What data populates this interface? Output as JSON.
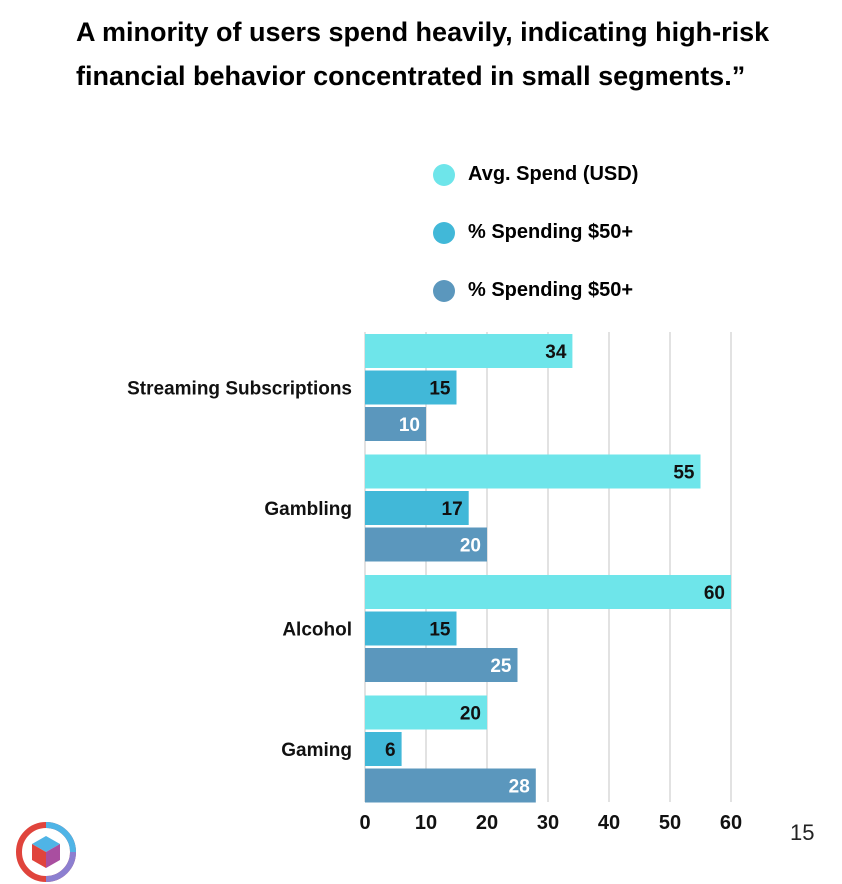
{
  "page": {
    "number": "15"
  },
  "title_lines": [
    "A minority of users spend heavily, indicating high-risk",
    "financial behavior concentrated in small segments.”"
  ],
  "chart_data": {
    "type": "bar",
    "orientation": "horizontal",
    "title": "",
    "categories": [
      "Streaming Subscriptions",
      "Gambling",
      "Alcohol",
      "Gaming"
    ],
    "series": [
      {
        "name": "Avg. Spend (USD)",
        "values": [
          34,
          55,
          60,
          20
        ],
        "color": "#6ee5ea",
        "label_color": "#111111"
      },
      {
        "name": "% Spending $50+",
        "values": [
          15,
          17,
          15,
          6
        ],
        "color": "#41b8d8",
        "label_color": "#111111"
      },
      {
        "name": "% Spending $50+",
        "values": [
          10,
          20,
          25,
          28
        ],
        "color": "#5b97bd",
        "label_color": "#ffffff"
      }
    ],
    "x_ticks": [
      0,
      10,
      20,
      30,
      40,
      50,
      60
    ],
    "xlim": [
      0,
      60
    ],
    "grid": true,
    "legend_position": "top"
  },
  "colors": {
    "gridline": "#cfcfcf",
    "logo_red": "#e0443c",
    "logo_blue": "#4fb4e6"
  }
}
